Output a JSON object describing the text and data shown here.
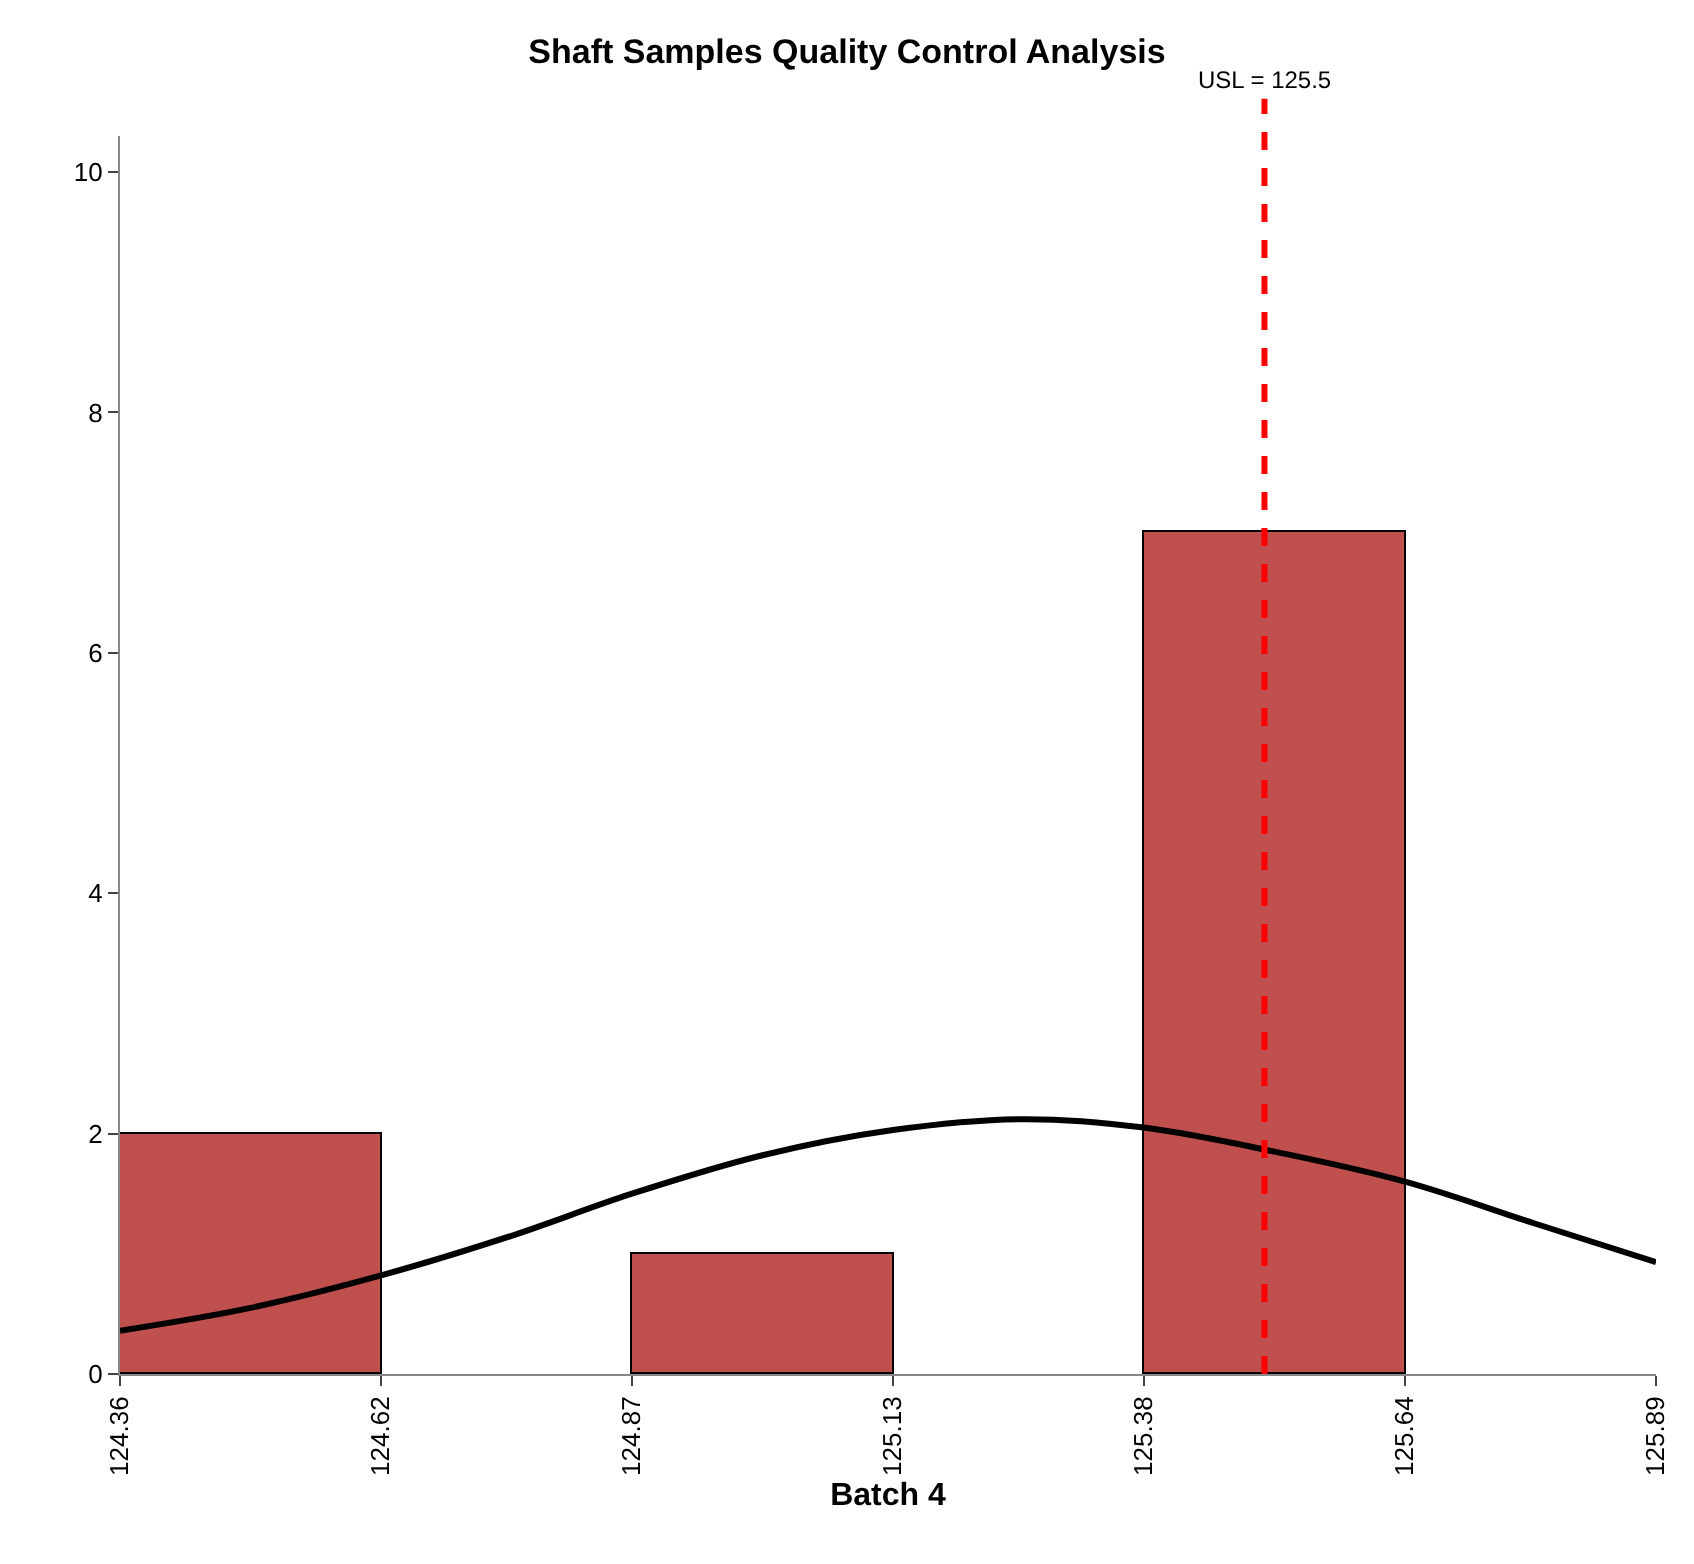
{
  "chart_data": {
    "type": "histogram",
    "title": "Shaft Samples Quality Control Analysis",
    "xlabel": "Batch 4",
    "bins": [
      124.36,
      124.62,
      124.87,
      125.13,
      125.38,
      125.64
    ],
    "values": [
      2,
      0,
      1,
      0,
      7
    ],
    "color": "#c0504d",
    "series": [
      {
        "type": "line",
        "color": "#000000",
        "x": [
          124.36,
          124.49,
          124.62,
          124.75,
          124.87,
          125.0,
          125.13,
          125.26,
          125.38,
          125.51,
          125.64,
          125.77,
          125.89
        ],
        "values": [
          0.36,
          0.55,
          0.82,
          1.15,
          1.5,
          1.82,
          2.03,
          2.12,
          2.05,
          1.85,
          1.6,
          1.25,
          0.93
        ]
      }
    ],
    "xlim": [
      124.36,
      125.89
    ],
    "xticks": [
      124.36,
      124.62,
      124.87,
      125.13,
      125.38,
      125.64,
      125.89
    ],
    "ylim": [
      0,
      10.3
    ],
    "yticks": [
      0,
      2,
      4,
      6,
      8,
      10
    ],
    "ref_lines": [
      {
        "axis": "x",
        "value": 125.5,
        "label": "USL = 125.5",
        "color": "#ff0000",
        "line_style": "dashed"
      }
    ]
  }
}
